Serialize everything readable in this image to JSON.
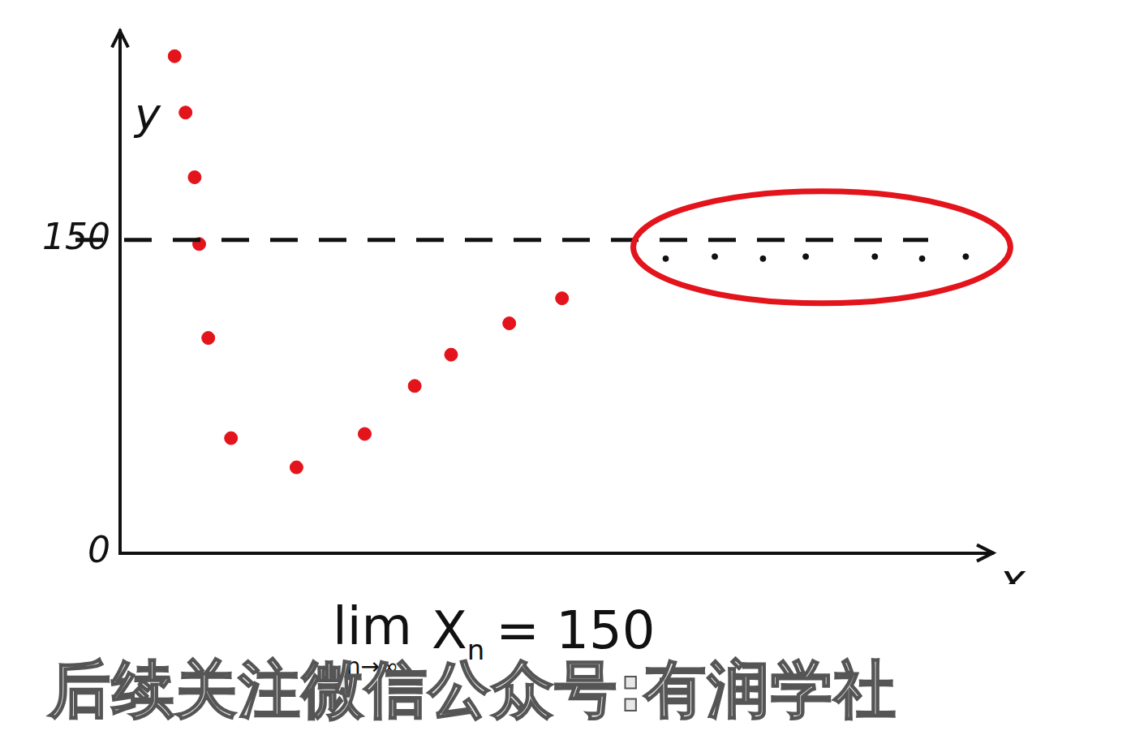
{
  "chart_data": {
    "type": "scatter",
    "x": [
      6,
      7.2,
      8.2,
      8.7,
      9.7,
      12.2,
      19.4,
      26.9,
      32.4,
      36.4,
      42.8,
      48.6,
      60,
      65.4,
      70.7,
      75.4,
      83,
      88.2,
      93
    ],
    "values": [
      238,
      211,
      180,
      148,
      103,
      55,
      41,
      57,
      80,
      95,
      110,
      122,
      141,
      142,
      141,
      142,
      142,
      141,
      142
    ],
    "colors": [
      "#e3141b",
      "#e3141b",
      "#e3141b",
      "#e3141b",
      "#e3141b",
      "#e3141b",
      "#e3141b",
      "#e3141b",
      "#e3141b",
      "#e3141b",
      "#e3141b",
      "#e3141b",
      "#111111",
      "#111111",
      "#111111",
      "#111111",
      "#111111",
      "#111111",
      "#111111"
    ],
    "x_label": "x",
    "y_label": "y",
    "xlim": [
      0,
      96
    ],
    "ylim": [
      0,
      250
    ],
    "yticks": [
      0,
      150
    ],
    "limit_line": 150,
    "tick_labels": "y",
    "grid": false,
    "marker": "circle",
    "formula": {
      "operator": "lim",
      "under": "n→∞",
      "variable": "X",
      "subscript": "n",
      "rhs": "= 150"
    },
    "caption": "后续关注微信公众号:有润学社"
  }
}
